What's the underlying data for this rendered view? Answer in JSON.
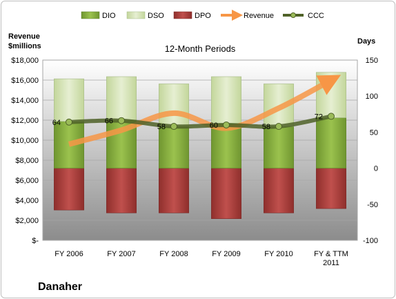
{
  "chart_data": {
    "type": "bar",
    "title": "12-Month Periods",
    "company": "Danaher",
    "left_axis_label": [
      "Revenue",
      "$millions"
    ],
    "right_axis_label": "Days",
    "categories": [
      [
        "FY 2006"
      ],
      [
        "FY 2007"
      ],
      [
        "FY 2008"
      ],
      [
        "FY 2009"
      ],
      [
        "FY 2010"
      ],
      [
        "FY & TTM",
        "2011"
      ]
    ],
    "left_ylim": [
      0,
      18000
    ],
    "left_ticks": [
      "$-",
      "$2,000",
      "$4,000",
      "$6,000",
      "$8,000",
      "$10,000",
      "$12,000",
      "$14,000",
      "$16,000",
      "$18,000"
    ],
    "right_ylim": [
      -100,
      150
    ],
    "right_ticks": [
      "-100",
      "-50",
      "0",
      "50",
      "100",
      "150"
    ],
    "grid": true,
    "legend_position": "top",
    "series": [
      {
        "name": "DIO",
        "kind": "bar",
        "axis": "right",
        "values": [
          65,
          67,
          58,
          62,
          58,
          70
        ],
        "color": "#8fb744"
      },
      {
        "name": "DSO",
        "kind": "bar",
        "axis": "right",
        "values": [
          59,
          60,
          59,
          65,
          59,
          63
        ],
        "color": "#d7e4bd"
      },
      {
        "name": "DPO",
        "kind": "bar",
        "axis": "right",
        "values": [
          -58,
          -62,
          -62,
          -70,
          -62,
          -56
        ],
        "color": "#c0504d"
      },
      {
        "name": "Revenue",
        "kind": "line",
        "axis": "left",
        "values": [
          9600,
          11000,
          12700,
          11200,
          13200,
          16000
        ],
        "color": "#f79646"
      },
      {
        "name": "CCC",
        "kind": "line",
        "axis": "right",
        "values": [
          64,
          66,
          58,
          60,
          58,
          72
        ],
        "labels": [
          "64",
          "66",
          "58",
          "60",
          "58",
          "72"
        ],
        "color": "#77933c"
      }
    ]
  }
}
